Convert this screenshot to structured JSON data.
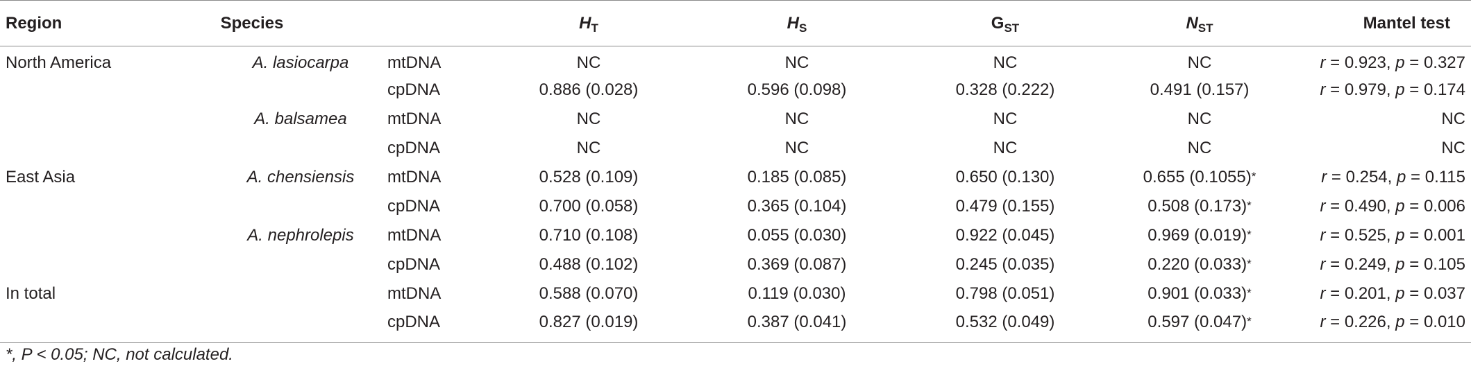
{
  "headers": {
    "region": "Region",
    "species": "Species",
    "marker": "",
    "ht": {
      "base": "H",
      "sub": "T"
    },
    "hs": {
      "base": "H",
      "sub": "S"
    },
    "gst": {
      "base": "G",
      "sub": "ST"
    },
    "nst": {
      "base": "N",
      "sub": "ST"
    },
    "mantel": "Mantel test"
  },
  "rows": [
    {
      "region": "North America",
      "species": "A. lasiocarpa",
      "marker": "mtDNA",
      "ht": "NC",
      "hs": "NC",
      "gst": "NC",
      "nst": "NC",
      "nst_star": "",
      "mantel": {
        "r": "0.923",
        "p": "0.327"
      }
    },
    {
      "region": "",
      "species": "",
      "marker": "cpDNA",
      "ht": "0.886 (0.028)",
      "hs": "0.596 (0.098)",
      "gst": "0.328 (0.222)",
      "nst": "0.491 (0.157)",
      "nst_star": "",
      "mantel": {
        "r": "0.979",
        "p": "0.174"
      }
    },
    {
      "region": "",
      "species": "A. balsamea",
      "marker": "mtDNA",
      "ht": "NC",
      "hs": "NC",
      "gst": "NC",
      "nst": "NC",
      "nst_star": "",
      "mantel": {
        "text": "NC"
      }
    },
    {
      "region": "",
      "species": "",
      "marker": "cpDNA",
      "ht": "NC",
      "hs": "NC",
      "gst": "NC",
      "nst": "NC",
      "nst_star": "",
      "mantel": {
        "text": "NC"
      }
    },
    {
      "region": "East Asia",
      "species": "A. chensiensis",
      "marker": "mtDNA",
      "ht": "0.528 (0.109)",
      "hs": "0.185 (0.085)",
      "gst": "0.650 (0.130)",
      "nst": "0.655 (0.1055)",
      "nst_star": "*",
      "mantel": {
        "r": "0.254",
        "p": "0.115"
      }
    },
    {
      "region": "",
      "species": "",
      "marker": "cpDNA",
      "ht": "0.700 (0.058)",
      "hs": "0.365 (0.104)",
      "gst": "0.479 (0.155)",
      "nst": "0.508 (0.173)",
      "nst_star": "*",
      "mantel": {
        "r": "0.490",
        "p": "0.006"
      }
    },
    {
      "region": "",
      "species": "A. nephrolepis",
      "marker": "mtDNA",
      "ht": "0.710 (0.108)",
      "hs": "0.055 (0.030)",
      "gst": "0.922 (0.045)",
      "nst": "0.969 (0.019)",
      "nst_star": "*",
      "mantel": {
        "r": "0.525",
        "p": "0.001"
      }
    },
    {
      "region": "",
      "species": "",
      "marker": "cpDNA",
      "ht": "0.488 (0.102)",
      "hs": "0.369 (0.087)",
      "gst": "0.245 (0.035)",
      "nst": "0.220 (0.033)",
      "nst_star": "*",
      "mantel": {
        "r": "0.249",
        "p": "0.105"
      }
    },
    {
      "region": "In total",
      "species": "",
      "marker": "mtDNA",
      "ht": "0.588 (0.070)",
      "hs": "0.119 (0.030)",
      "gst": "0.798 (0.051)",
      "nst": "0.901 (0.033)",
      "nst_star": "*",
      "mantel": {
        "r": "0.201",
        "p": "0.037"
      }
    },
    {
      "region": "",
      "species": "",
      "marker": "cpDNA",
      "ht": "0.827 (0.019)",
      "hs": "0.387 (0.041)",
      "gst": "0.532 (0.049)",
      "nst": "0.597 (0.047)",
      "nst_star": "*",
      "mantel": {
        "r": "0.226",
        "p": "0.010"
      }
    }
  ],
  "mantel_labels": {
    "r": "r",
    "p": "p",
    "eq": " = ",
    "sep": ", "
  },
  "footnote": "*, P < 0.05; NC, not calculated."
}
